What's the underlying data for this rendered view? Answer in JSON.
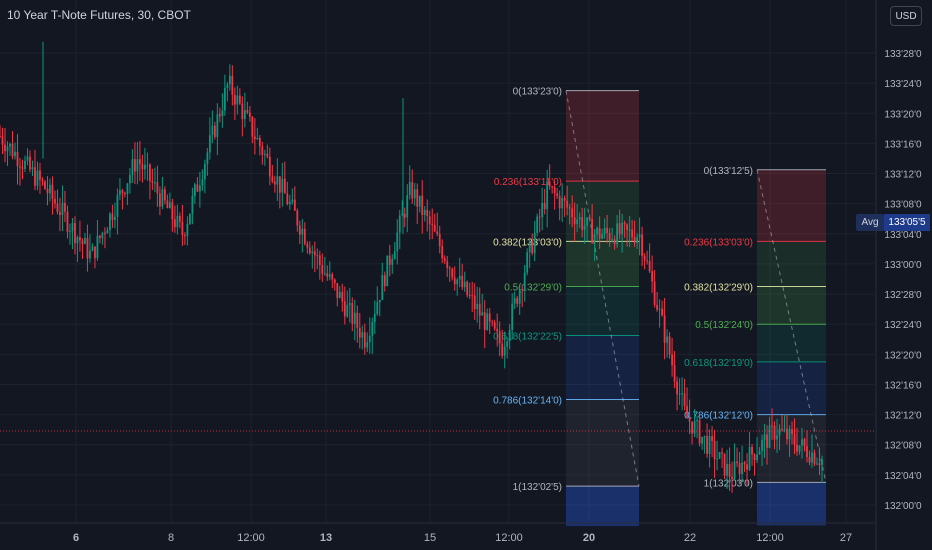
{
  "header": {
    "title": "10 Year T-Note Futures, 30, CBOT",
    "currency": "USD"
  },
  "price_axis": {
    "labels": [
      "133'28'0",
      "133'24'0",
      "133'20'0",
      "133'16'0",
      "133'12'0",
      "133'08'0",
      "133'04'0",
      "133'00'0",
      "132'28'0",
      "132'24'0",
      "132'20'0",
      "132'16'0",
      "132'12'0",
      "132'08'0",
      "132'04'0",
      "132'00'0"
    ],
    "avg_label": "Avg",
    "avg_value": "133'05'5"
  },
  "time_axis": {
    "labels": [
      "6",
      "8",
      "12:00",
      "13",
      "15",
      "12:00",
      "20",
      "22",
      "12:00",
      "27"
    ],
    "bold": [
      true,
      false,
      false,
      true,
      false,
      false,
      true,
      false,
      false,
      false
    ]
  },
  "fib_left": {
    "levels": [
      {
        "ratio": "0",
        "price": "133'23'0",
        "text": "0(133'23'0)",
        "color": "#b2b5be"
      },
      {
        "ratio": "0.236",
        "price": "133'11'0",
        "text": "0.236(133'11'0)",
        "color": "#f23645"
      },
      {
        "ratio": "0.382",
        "price": "133'03'0",
        "text": "0.382(133'03'0)",
        "color": "#e0e3a1"
      },
      {
        "ratio": "0.5",
        "price": "132'29'0",
        "text": "0.5(132'29'0)",
        "color": "#4caf50"
      },
      {
        "ratio": "0.618",
        "price": "132'22'5",
        "text": "0.618(132'22'5)",
        "color": "#089981"
      },
      {
        "ratio": "0.786",
        "price": "132'14'0",
        "text": "0.786(132'14'0)",
        "color": "#64b5f6"
      },
      {
        "ratio": "1",
        "price": "132'02'5",
        "text": "1(132'02'5)",
        "color": "#b2b5be"
      }
    ]
  },
  "fib_right": {
    "levels": [
      {
        "ratio": "0",
        "price": "133'12'5",
        "text": "0(133'12'5)",
        "color": "#b2b5be"
      },
      {
        "ratio": "0.236",
        "price": "133'03'0",
        "text": "0.236(133'03'0)",
        "color": "#f23645"
      },
      {
        "ratio": "0.382",
        "price": "132'29'0",
        "text": "0.382(132'29'0)",
        "color": "#e0e3a1"
      },
      {
        "ratio": "0.5",
        "price": "132'24'0",
        "text": "0.5(132'24'0)",
        "color": "#4caf50"
      },
      {
        "ratio": "0.618",
        "price": "132'19'0",
        "text": "0.618(132'19'0)",
        "color": "#089981"
      },
      {
        "ratio": "0.786",
        "price": "132'12'0",
        "text": "0.786(132'12'0)",
        "color": "#64b5f6"
      },
      {
        "ratio": "1",
        "price": "132'03'0",
        "text": "1(132'03'0)",
        "color": "#b2b5be"
      }
    ]
  },
  "colors": {
    "background": "#131722",
    "grid": "#1e222d",
    "up": "#089981",
    "down": "#f23645",
    "axis_text": "#b2b5be",
    "avg_badge": "#1e3a8a"
  },
  "chart_data": {
    "type": "candlestick",
    "y_unit": "price (points'32nds'tenths)",
    "x": [
      "6",
      "8",
      "12:00",
      "13",
      "15",
      "12:00",
      "20",
      "22",
      "12:00",
      "27"
    ],
    "close_approx": [
      "133'17'0",
      "133'10'0",
      "133'01'0",
      "133'14'0",
      "133'04'0",
      "133'24'0",
      "133'12'0",
      "133'00'0",
      "132'22'0",
      "133'10'0",
      "132'30'0",
      "132'21'0",
      "133'10'0",
      "133'04'0",
      "133'04'0",
      "132'12'0",
      "132'04'0",
      "132'10'0",
      "132'06'0"
    ],
    "current_price_line": "132'09'0"
  }
}
